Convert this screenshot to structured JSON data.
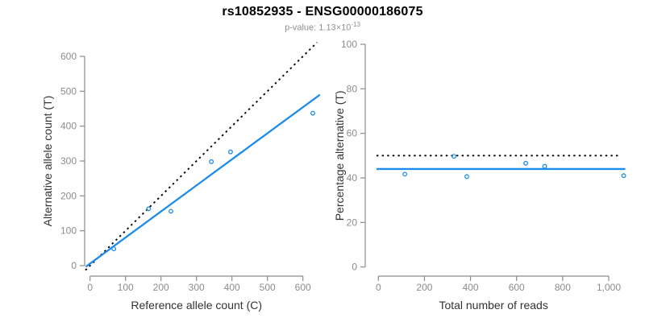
{
  "header": {
    "title": "rs10852935 - ENSG00000186075",
    "pvalue_prefix": "p-value: 1.13×10",
    "pvalue_exponent": "-13"
  },
  "colors": {
    "accent_blue": "#1E8CEC",
    "dotted_black": "#000000",
    "axis_gray": "#8C8C8C",
    "tick_label_gray": "#8C8C8C",
    "axis_title_dark": "#333333"
  },
  "chart_data": [
    {
      "type": "scatter",
      "panel": "left",
      "xlabel": "Reference allele count (C)",
      "ylabel": "Alternative allele count (T)",
      "xlim": [
        0,
        650
      ],
      "ylim": [
        0,
        620
      ],
      "grid": false,
      "legend": null,
      "xtick_values": [
        0,
        100,
        200,
        300,
        400,
        500,
        600
      ],
      "xtick_labels": [
        "0",
        "100",
        "200",
        "300",
        "400",
        "500",
        "600"
      ],
      "ytick_values": [
        0,
        100,
        200,
        300,
        400,
        500,
        600
      ],
      "ytick_labels": [
        "0",
        "100",
        "200",
        "300",
        "400",
        "500",
        "600"
      ],
      "points": [
        {
          "x": 67,
          "y": 48
        },
        {
          "x": 165,
          "y": 163
        },
        {
          "x": 228,
          "y": 156
        },
        {
          "x": 342,
          "y": 298
        },
        {
          "x": 396,
          "y": 326
        },
        {
          "x": 628,
          "y": 437
        }
      ],
      "lines": [
        {
          "name": "identity-line",
          "style": "dotted",
          "color": "black",
          "x1": -13,
          "y1": -13,
          "x2": 640,
          "y2": 640
        },
        {
          "name": "fit-line",
          "style": "solid",
          "color": "blue",
          "x1": -12,
          "y1": -3,
          "x2": 648,
          "y2": 490
        }
      ]
    },
    {
      "type": "scatter",
      "panel": "right",
      "xlabel": "Total number of reads",
      "ylabel": "Percentage alternative (T)",
      "xlim": [
        0,
        1080
      ],
      "ylim": [
        0,
        100
      ],
      "grid": false,
      "legend": null,
      "xtick_values": [
        0,
        200,
        400,
        600,
        800,
        1000
      ],
      "xtick_labels": [
        "0",
        "200",
        "400",
        "600",
        "800",
        "1,000"
      ],
      "ytick_values": [
        0,
        20,
        40,
        60,
        80,
        100
      ],
      "ytick_labels": [
        "0",
        "20",
        "40",
        "60",
        "80",
        "100"
      ],
      "points": [
        {
          "x": 115,
          "y": 41.7
        },
        {
          "x": 328,
          "y": 49.7
        },
        {
          "x": 384,
          "y": 40.6
        },
        {
          "x": 640,
          "y": 46.6
        },
        {
          "x": 722,
          "y": 45.2
        },
        {
          "x": 1065,
          "y": 41.0
        }
      ],
      "lines": [
        {
          "name": "null-line",
          "style": "dotted",
          "color": "black",
          "x1": -8,
          "y1": 50,
          "x2": 1050,
          "y2": 50
        },
        {
          "name": "fit-line",
          "style": "solid",
          "color": "blue",
          "x1": -8,
          "y1": 44,
          "x2": 1072,
          "y2": 44
        }
      ]
    }
  ]
}
